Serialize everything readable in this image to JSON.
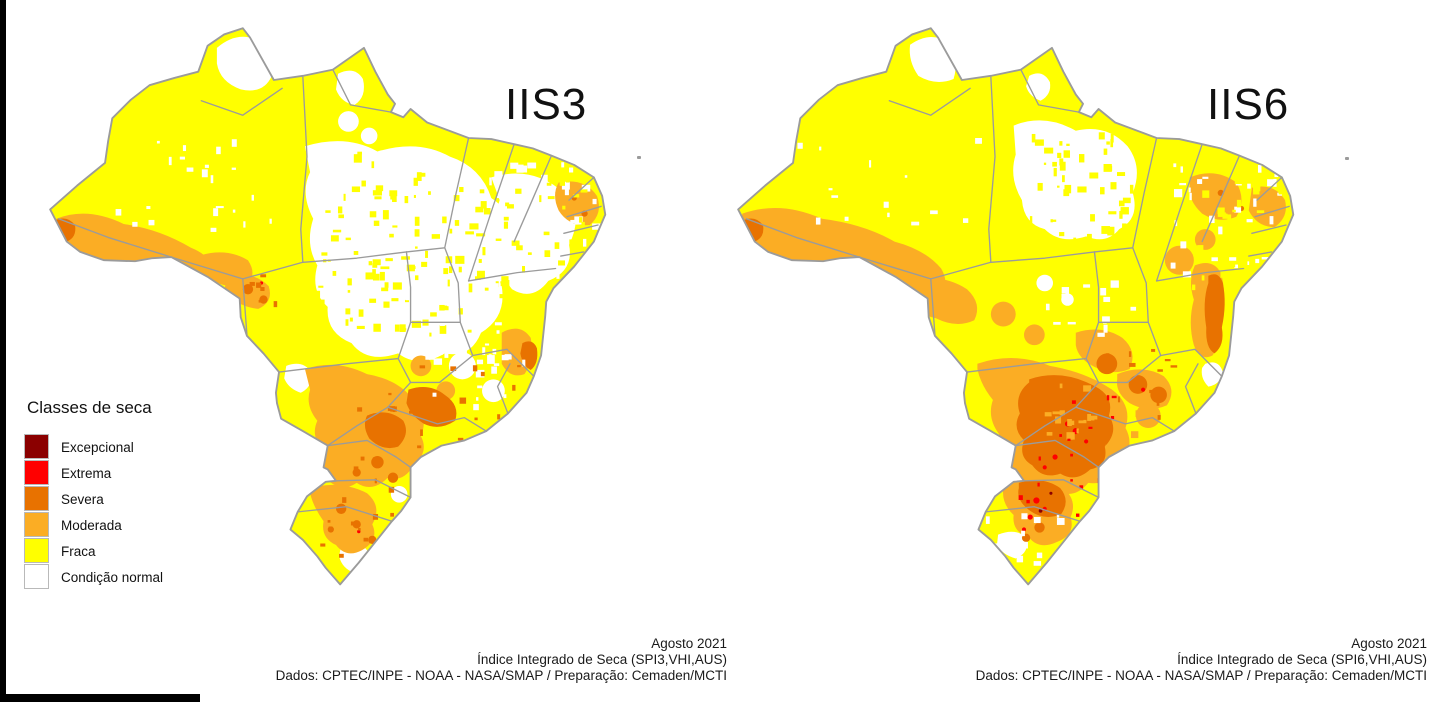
{
  "figure": {
    "legend": {
      "title": "Classes de seca",
      "items": [
        {
          "label": "Excepcional",
          "color": "#8B0000"
        },
        {
          "label": "Extrema",
          "color": "#FF0000"
        },
        {
          "label": "Severa",
          "color": "#E87200"
        },
        {
          "label": "Moderada",
          "color": "#FBAD24"
        },
        {
          "label": "Fraca",
          "color": "#FFFF00"
        },
        {
          "label": "Condição normal",
          "color": "#FFFFFF"
        }
      ]
    },
    "maps": [
      {
        "title": "IIS3",
        "caption": [
          "Agosto 2021",
          "Índice Integrado de Seca (SPI3,VHI,AUS)",
          "Dados: CPTEC/INPE - NOAA - NASA/SMAP / Preparação: Cemaden/MCTI"
        ]
      },
      {
        "title": "IIS6",
        "caption": [
          "Agosto 2021",
          "Índice Integrado de Seca (SPI6,VHI,AUS)",
          "Dados: CPTEC/INPE - NOAA - NASA/SMAP / Preparação: Cemaden/MCTI"
        ]
      }
    ],
    "map_border_color": "#9B9B9B",
    "frame_color": "#000000"
  }
}
